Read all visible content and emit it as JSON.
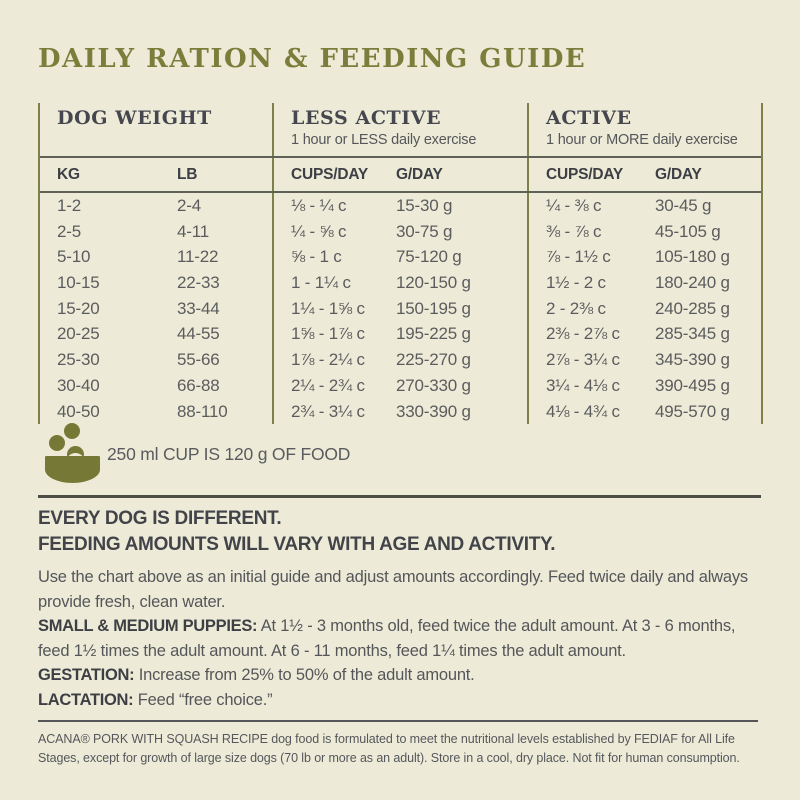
{
  "colors": {
    "background": "#edebd7",
    "title_olive": "#7b7d3b",
    "table_line_olive": "#7e8048",
    "rule_dark": "#4c4e46",
    "heading_dark": "#43444a",
    "body_gray": "#55565a",
    "bowl_olive": "#767936"
  },
  "title": "DAILY RATION & FEEDING GUIDE",
  "table": {
    "groups": [
      {
        "label": "DOG WEIGHT",
        "sub": ""
      },
      {
        "label": "LESS ACTIVE",
        "sub": "1 hour or LESS daily exercise"
      },
      {
        "label": "ACTIVE",
        "sub": "1 hour or MORE daily exercise"
      }
    ],
    "columns": [
      "KG",
      "LB",
      "CUPS/DAY",
      "G/DAY",
      "CUPS/DAY",
      "G/DAY"
    ],
    "rows": [
      [
        "1-2",
        "2-4",
        "⅛ - ¼ c",
        "15-30 g",
        "¼ - ⅜ c",
        "30-45 g"
      ],
      [
        "2-5",
        "4-11",
        "¼ - ⅝ c",
        "30-75 g",
        "⅜ - ⅞ c",
        "45-105 g"
      ],
      [
        "5-10",
        "11-22",
        "⅝ - 1 c",
        "75-120 g",
        "⅞ - 1½ c",
        "105-180 g"
      ],
      [
        "10-15",
        "22-33",
        "1 - 1¼ c",
        "120-150 g",
        "1½ - 2 c",
        "180-240 g"
      ],
      [
        "15-20",
        "33-44",
        "1¼ - 1⅝ c",
        "150-195 g",
        "2 - 2⅜ c",
        "240-285 g"
      ],
      [
        "20-25",
        "44-55",
        "1⅝ - 1⅞ c",
        "195-225 g",
        "2⅜ - 2⅞ c",
        "285-345 g"
      ],
      [
        "25-30",
        "55-66",
        "1⅞ - 2¼ c",
        "225-270 g",
        "2⅞ - 3¼ c",
        "345-390 g"
      ],
      [
        "30-40",
        "66-88",
        "2¼ - 2¾ c",
        "270-330 g",
        "3¼ - 4⅛ c",
        "390-495 g"
      ],
      [
        "40-50",
        "88-110",
        "2¾ - 3¼ c",
        "330-390 g",
        "4⅛ - 4¾ c",
        "495-570 g"
      ]
    ]
  },
  "cup_note": "250 ml CUP IS 120 g OF FOOD",
  "notes": {
    "heading1": "EVERY DOG IS DIFFERENT.",
    "heading2": "FEEDING AMOUNTS WILL VARY WITH AGE AND ACTIVITY.",
    "intro": "Use the chart above as an initial guide and adjust amounts accordingly. Feed twice daily and always provide fresh, clean water.",
    "puppies": {
      "label": "SMALL & MEDIUM PUPPIES:",
      "text": "At 1½ - 3 months old, feed twice the adult amount. At 3 - 6 months, feed 1½ times the adult amount. At 6 - 11 months, feed 1¼ times the adult amount."
    },
    "gestation": {
      "label": "GESTATION:",
      "text": "Increase from 25% to 50% of the adult amount."
    },
    "lactation": {
      "label": "LACTATION:",
      "text": "Feed “free choice.”"
    }
  },
  "footnote": "ACANA® PORK WITH SQUASH RECIPE dog food is formulated to meet the nutritional levels established by FEDIAF for All Life Stages, except for growth of large size dogs (70 lb or more as an adult). Store in a cool, dry place. Not fit for human consumption."
}
